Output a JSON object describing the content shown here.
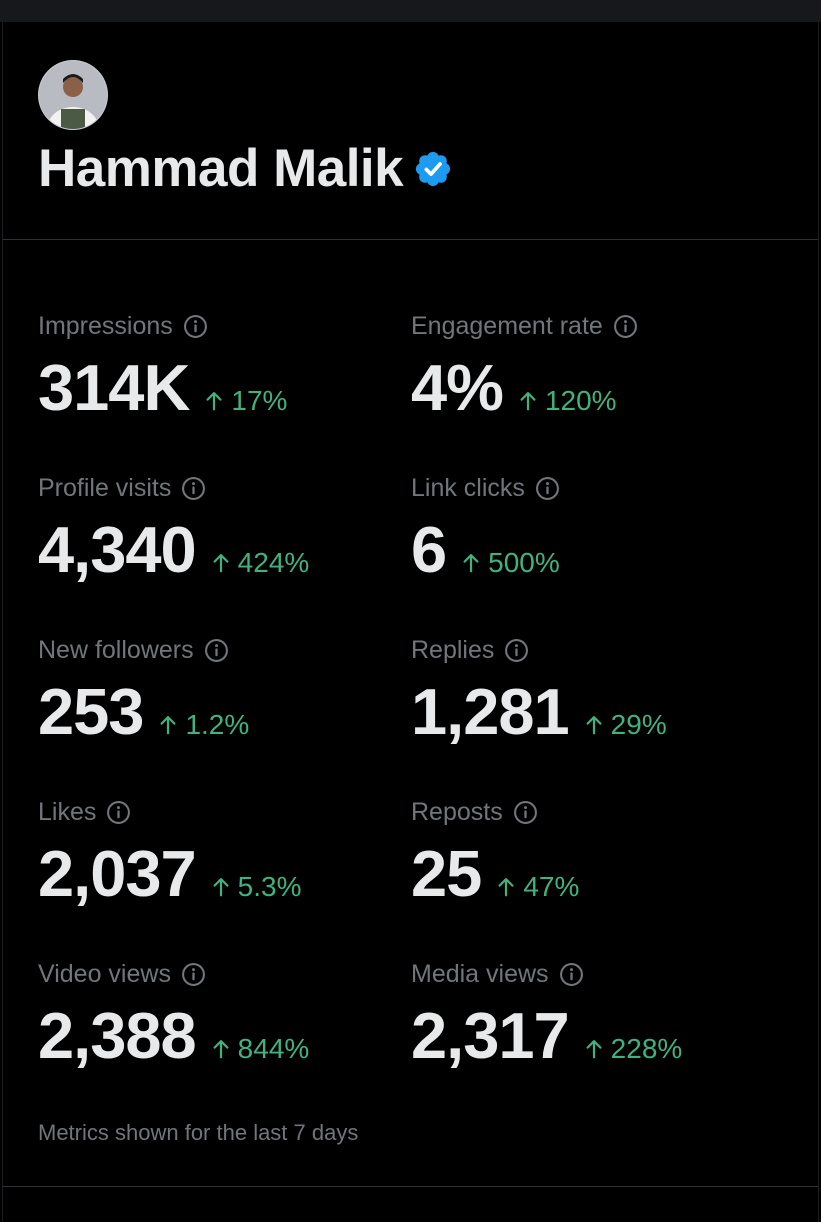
{
  "profile": {
    "name": "Hammad Malik"
  },
  "metrics": [
    {
      "label": "Impressions",
      "value": "314K",
      "change": "17%"
    },
    {
      "label": "Engagement rate",
      "value": "4%",
      "change": "120%"
    },
    {
      "label": "Profile visits",
      "value": "4,340",
      "change": "424%"
    },
    {
      "label": "Link clicks",
      "value": "6",
      "change": "500%"
    },
    {
      "label": "New followers",
      "value": "253",
      "change": "1.2%"
    },
    {
      "label": "Replies",
      "value": "1,281",
      "change": "29%"
    },
    {
      "label": "Likes",
      "value": "2,037",
      "change": "5.3%"
    },
    {
      "label": "Reposts",
      "value": "25",
      "change": "47%"
    },
    {
      "label": "Video views",
      "value": "2,388",
      "change": "844%"
    },
    {
      "label": "Media views",
      "value": "2,317",
      "change": "228%"
    }
  ],
  "footer": "Metrics shown for the last 7 days"
}
